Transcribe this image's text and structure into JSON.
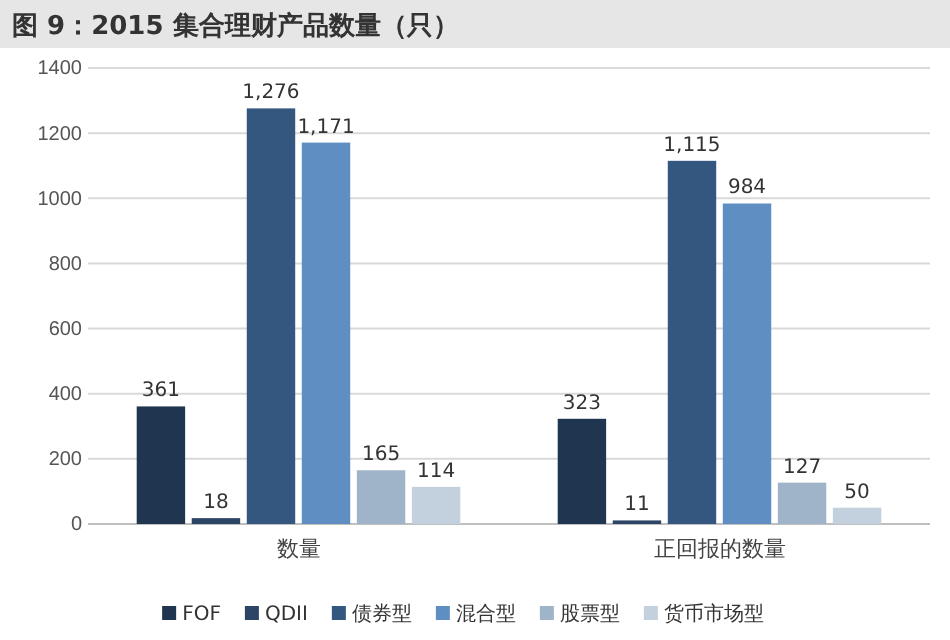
{
  "chart_data": {
    "type": "bar",
    "title": "图 9：2015 集合理财产品数量（只）",
    "categories": [
      "数量",
      "正回报的数量"
    ],
    "series": [
      {
        "name": "FOF",
        "color": "#1f3550",
        "values": [
          361,
          323
        ],
        "value_labels": [
          "361",
          "323"
        ]
      },
      {
        "name": "QDII",
        "color": "#2c4466",
        "values": [
          18,
          11
        ],
        "value_labels": [
          "18",
          "11"
        ]
      },
      {
        "name": "债券型",
        "color": "#34577f",
        "values": [
          1276,
          1115
        ],
        "value_labels": [
          "1,276",
          "1,115"
        ]
      },
      {
        "name": "混合型",
        "color": "#5f8fc2",
        "values": [
          1171,
          984
        ],
        "value_labels": [
          "1,171",
          "984"
        ]
      },
      {
        "name": "股票型",
        "color": "#9fb4c9",
        "values": [
          165,
          127
        ],
        "value_labels": [
          "165",
          "127"
        ]
      },
      {
        "name": "货币市场型",
        "color": "#c3d0de",
        "values": [
          114,
          50
        ],
        "value_labels": [
          "114",
          "50"
        ]
      }
    ],
    "ylim": [
      0,
      1400
    ],
    "yticks": [
      0,
      200,
      400,
      600,
      800,
      1000,
      1200,
      1400
    ],
    "grid": "y",
    "legend": "bottom"
  }
}
